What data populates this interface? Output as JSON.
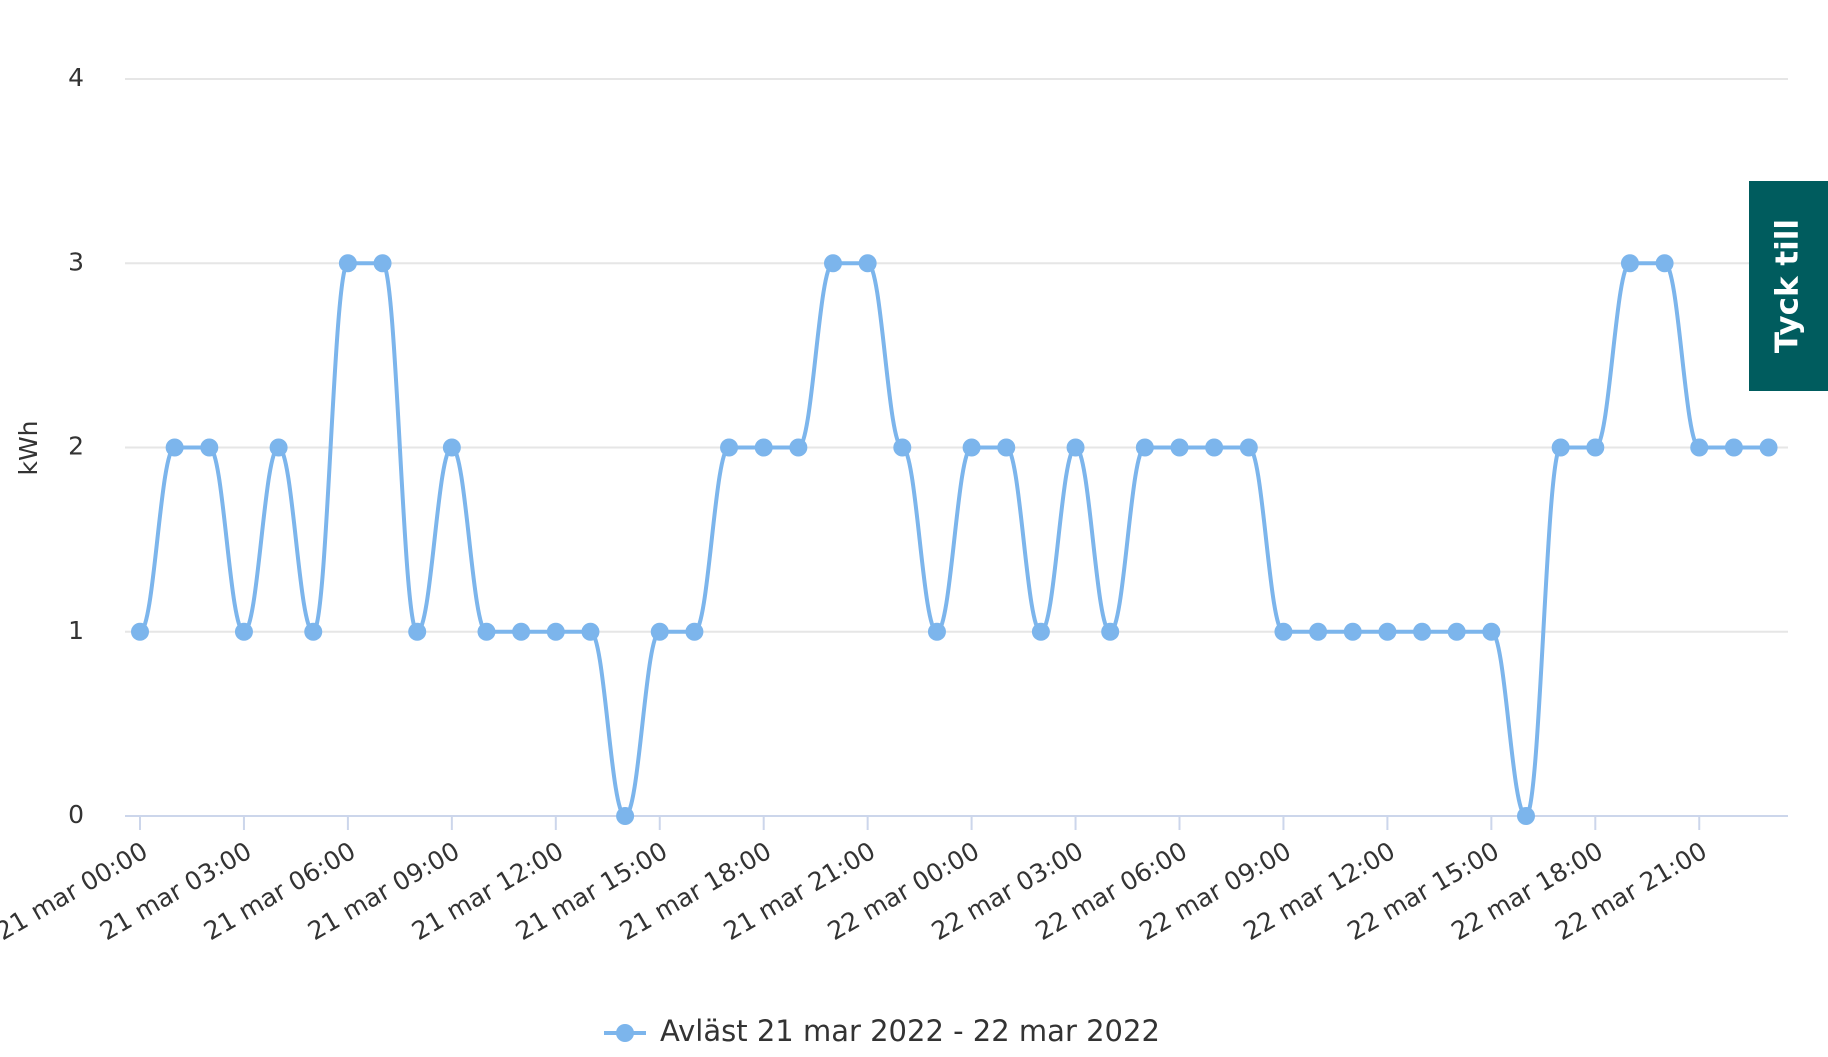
{
  "chart_data": {
    "type": "line",
    "y_label": "kWh",
    "categories": [
      "21 mar 00:00",
      null,
      null,
      "21 mar 03:00",
      null,
      null,
      "21 mar 06:00",
      null,
      null,
      "21 mar 09:00",
      null,
      null,
      "21 mar 12:00",
      null,
      null,
      "21 mar 15:00",
      null,
      null,
      "21 mar 18:00",
      null,
      null,
      "21 mar 21:00",
      null,
      null,
      "22 mar 00:00",
      null,
      null,
      "22 mar 03:00",
      null,
      null,
      "22 mar 06:00",
      null,
      null,
      "22 mar 09:00",
      null,
      null,
      "22 mar 12:00",
      null,
      null,
      "22 mar 15:00",
      null,
      null,
      "22 mar 18:00",
      null,
      null,
      "22 mar 21:00",
      null,
      null
    ],
    "series": [
      {
        "name": "Avläst 21 mar 2022 - 22 mar 2022",
        "color": "#7cb5ec",
        "values": [
          1,
          2,
          2,
          1,
          2,
          1,
          3,
          3,
          1,
          2,
          1,
          1,
          1,
          1,
          0,
          1,
          1,
          2,
          2,
          2,
          3,
          3,
          2,
          1,
          2,
          2,
          1,
          2,
          1,
          2,
          2,
          2,
          2,
          1,
          1,
          1,
          1,
          1,
          1,
          1,
          0,
          2,
          2,
          3,
          3,
          2,
          2,
          2
        ]
      }
    ],
    "ylim": [
      0,
      4
    ],
    "yticks": [
      0,
      1,
      2,
      3,
      4
    ],
    "grid": true,
    "legend": "bottom"
  },
  "feedback_button": "Tyck till"
}
